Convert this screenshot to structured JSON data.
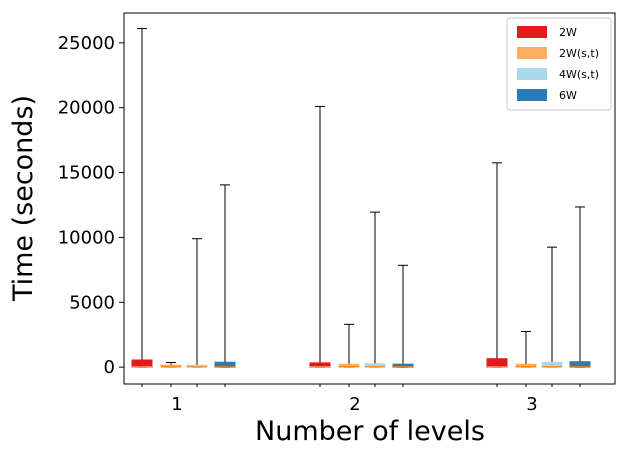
{
  "chart_data": {
    "type": "box",
    "title": "",
    "xlabel": "Number of levels",
    "ylabel": "Time (seconds)",
    "categories": [
      "1",
      "2",
      "3"
    ],
    "ylim": [
      -1300,
      27300
    ],
    "yticks": [
      0,
      5000,
      10000,
      15000,
      20000,
      25000
    ],
    "legend_position": "top-right",
    "grid": false,
    "series": [
      {
        "name": "2W",
        "color": "#e31a1c",
        "median_color": "#fdbf6f",
        "boxes": [
          {
            "category": "1",
            "whislo": 0,
            "q1": 0,
            "median": 20,
            "q3": 550,
            "whishi": 26100
          },
          {
            "category": "2",
            "whislo": 0,
            "q1": 0,
            "median": 20,
            "q3": 330,
            "whishi": 20100
          },
          {
            "category": "3",
            "whislo": 0,
            "q1": 0,
            "median": 20,
            "q3": 650,
            "whishi": 15750
          }
        ]
      },
      {
        "name": "2W(s,t)",
        "color": "#fdae61",
        "median_color": "#ff7f00",
        "boxes": [
          {
            "category": "1",
            "whislo": 0,
            "q1": 0,
            "median": 40,
            "q3": 160,
            "whishi": 360
          },
          {
            "category": "2",
            "whislo": 0,
            "q1": 0,
            "median": 40,
            "q3": 220,
            "whishi": 3300
          },
          {
            "category": "3",
            "whislo": 0,
            "q1": 0,
            "median": 40,
            "q3": 220,
            "whishi": 2750
          }
        ]
      },
      {
        "name": "4W(s,t)",
        "color": "#abd9e9",
        "median_color": "#ff7f00",
        "boxes": [
          {
            "category": "1",
            "whislo": 0,
            "q1": 0,
            "median": 30,
            "q3": 100,
            "whishi": 9900
          },
          {
            "category": "2",
            "whislo": 0,
            "q1": 0,
            "median": 30,
            "q3": 250,
            "whishi": 11950
          },
          {
            "category": "3",
            "whislo": 0,
            "q1": 0,
            "median": 30,
            "q3": 370,
            "whishi": 9250
          }
        ]
      },
      {
        "name": "6W",
        "color": "#2c7bb6",
        "median_color": "#ff7f00",
        "boxes": [
          {
            "category": "1",
            "whislo": 0,
            "q1": 0,
            "median": 30,
            "q3": 380,
            "whishi": 14050
          },
          {
            "category": "2",
            "whislo": 0,
            "q1": 0,
            "median": 30,
            "q3": 230,
            "whishi": 7850
          },
          {
            "category": "3",
            "whislo": 0,
            "q1": 0,
            "median": 30,
            "q3": 420,
            "whishi": 12350
          }
        ]
      }
    ]
  }
}
